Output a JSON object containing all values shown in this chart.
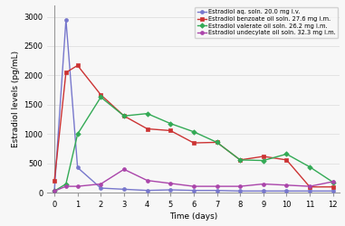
{
  "title": "",
  "xlabel": "Time (days)",
  "ylabel": "Estradiol levels (pg/mL)",
  "series": [
    {
      "label": "Estradiol aq. soln. 20.0 mg i.v.",
      "color": "#7777cc",
      "marker": "o",
      "x": [
        0,
        0.5,
        1,
        2,
        3,
        4,
        5,
        6,
        7,
        8,
        9,
        10,
        11,
        12
      ],
      "y": [
        30,
        2950,
        430,
        80,
        60,
        40,
        50,
        40,
        40,
        30,
        30,
        30,
        30,
        30
      ]
    },
    {
      "label": "Estradiol benzoate oil soln. 27.6 mg i.m.",
      "color": "#cc3333",
      "marker": "s",
      "x": [
        0,
        0.5,
        1,
        2,
        3,
        4,
        5,
        6,
        7,
        8,
        9,
        10,
        11,
        12
      ],
      "y": [
        200,
        2050,
        2170,
        1670,
        1310,
        1090,
        1060,
        850,
        860,
        560,
        620,
        560,
        100,
        100
      ]
    },
    {
      "label": "Estradiol valerate oil soln. 26.2 mg i.m.",
      "color": "#33aa55",
      "marker": "D",
      "x": [
        0,
        0.5,
        1,
        2,
        3,
        4,
        5,
        6,
        7,
        8,
        9,
        10,
        11,
        12
      ],
      "y": [
        30,
        150,
        1000,
        1630,
        1310,
        1350,
        1180,
        1040,
        860,
        560,
        550,
        660,
        440,
        180
      ]
    },
    {
      "label": "Estradiol undecylate oil soln. 32.3 mg i.m.",
      "color": "#aa44aa",
      "marker": "o",
      "x": [
        0,
        0.5,
        1,
        2,
        3,
        4,
        5,
        6,
        7,
        8,
        9,
        10,
        11,
        12
      ],
      "y": [
        30,
        110,
        110,
        150,
        400,
        210,
        160,
        110,
        110,
        110,
        150,
        130,
        110,
        190
      ]
    }
  ],
  "xlim": [
    -0.3,
    12.3
  ],
  "ylim": [
    0,
    3200
  ],
  "xticks": [
    0,
    1,
    2,
    3,
    4,
    5,
    6,
    7,
    8,
    9,
    10,
    11,
    12
  ],
  "yticks": [
    0,
    500,
    1000,
    1500,
    2000,
    2500,
    3000
  ],
  "legend_loc": "upper right",
  "legend_fontsize": 4.8,
  "axis_fontsize": 6.5,
  "tick_fontsize": 6.0,
  "background_color": "#f7f7f7",
  "grid_color": "#e0e0e0",
  "linewidth": 1.0,
  "markersize": 2.8
}
